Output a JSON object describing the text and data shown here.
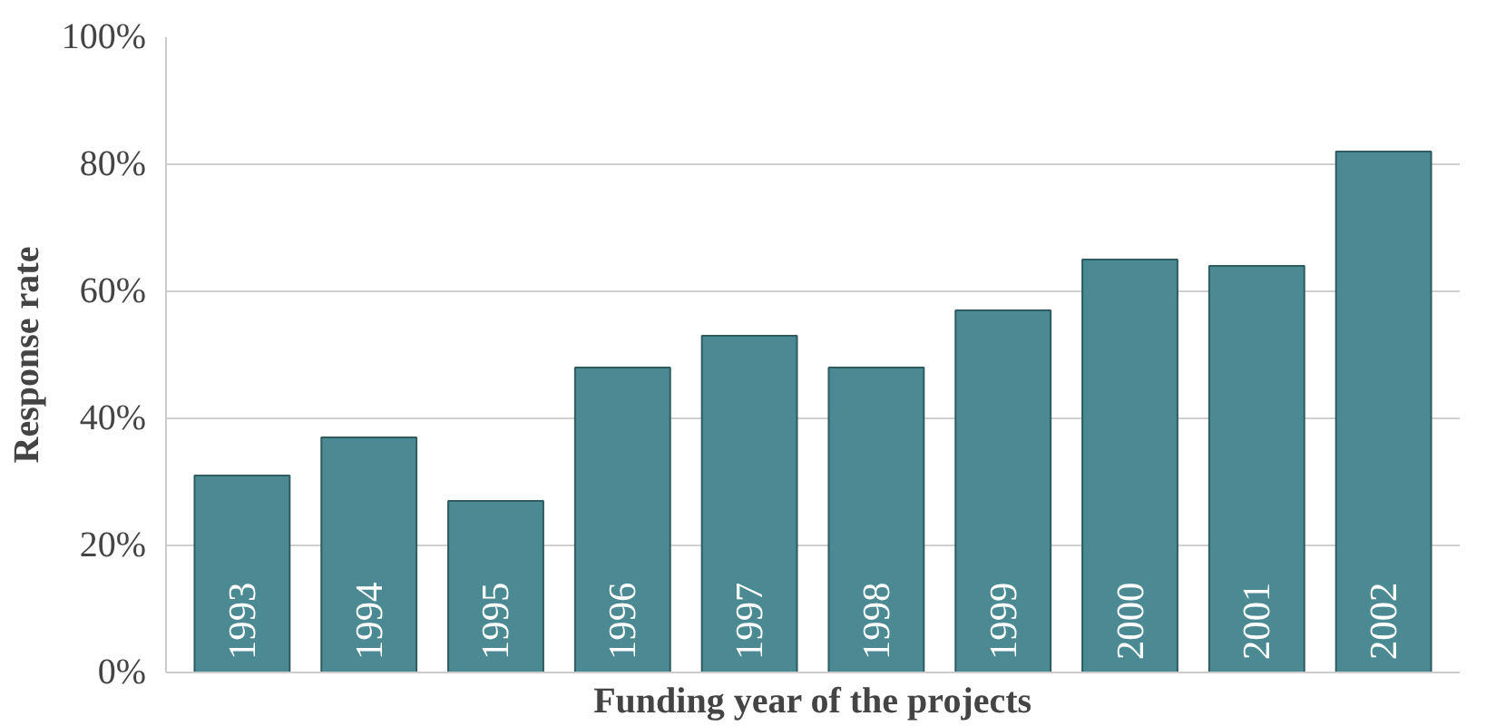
{
  "chart_data": {
    "type": "bar",
    "xlabel": "Funding year of the projects",
    "ylabel": "Response rate",
    "categories": [
      "1993",
      "1994",
      "1995",
      "1996",
      "1997",
      "1998",
      "1999",
      "2000",
      "2001",
      "2002"
    ],
    "values": [
      31,
      37,
      27,
      48,
      53,
      48,
      57,
      65,
      64,
      82
    ],
    "color": "#4b8a92",
    "ylim": [
      0,
      100
    ],
    "yticks": [
      {
        "value": 0,
        "label": "0%"
      },
      {
        "value": 20,
        "label": "20%"
      },
      {
        "value": 40,
        "label": "40%"
      },
      {
        "value": 60,
        "label": "60%"
      },
      {
        "value": 80,
        "label": "80%"
      },
      {
        "value": 100,
        "label": "100%"
      }
    ],
    "grid": "y"
  }
}
